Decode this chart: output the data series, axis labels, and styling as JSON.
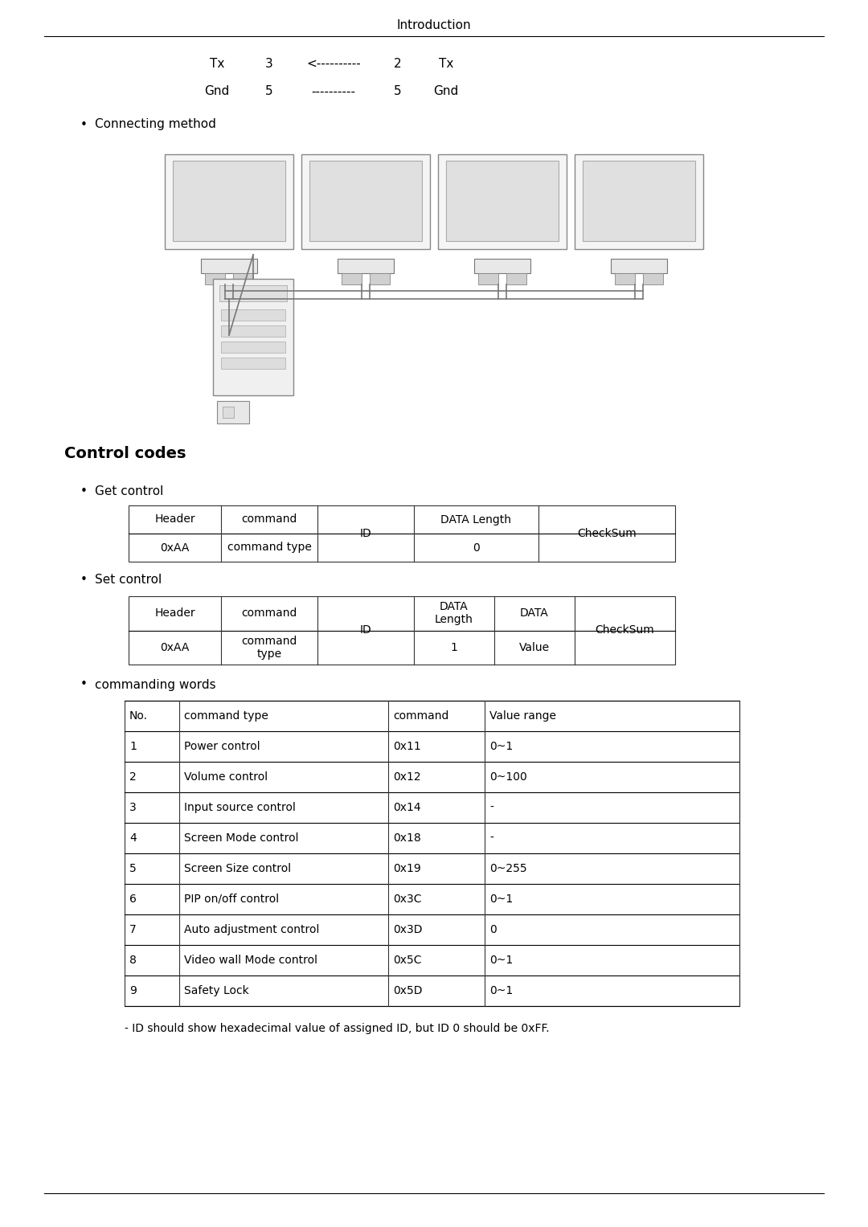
{
  "title": "Introduction",
  "bg_color": "#ffffff",
  "text_color": "#000000",
  "tx_gnd_row1": [
    "Tx",
    "3",
    "<----------",
    "2",
    "Tx"
  ],
  "tx_gnd_row2": [
    "Gnd",
    "5",
    "----------",
    "5",
    "Gnd"
  ],
  "bullet1": "Connecting method",
  "control_codes_title": "Control codes",
  "bullet2": "Get control",
  "bullet3": "Set control",
  "bullet4": "commanding words",
  "cmd_table_headers": [
    "No.",
    "command type",
    "command",
    "Value range"
  ],
  "cmd_table_rows": [
    [
      "1",
      "Power control",
      "0x11",
      "0~1"
    ],
    [
      "2",
      "Volume control",
      "0x12",
      "0~100"
    ],
    [
      "3",
      "Input source control",
      "0x14",
      "-"
    ],
    [
      "4",
      "Screen Mode control",
      "0x18",
      "-"
    ],
    [
      "5",
      "Screen Size control",
      "0x19",
      "0~255"
    ],
    [
      "6",
      "PIP on/off control",
      "0x3C",
      "0~1"
    ],
    [
      "7",
      "Auto adjustment control",
      "0x3D",
      "0"
    ],
    [
      "8",
      "Video wall Mode control",
      "0x5C",
      "0~1"
    ],
    [
      "9",
      "Safety Lock",
      "0x5D",
      "0~1"
    ]
  ],
  "footnote": "- ID should show hexadecimal value of assigned ID, but ID 0 should be 0xFF."
}
